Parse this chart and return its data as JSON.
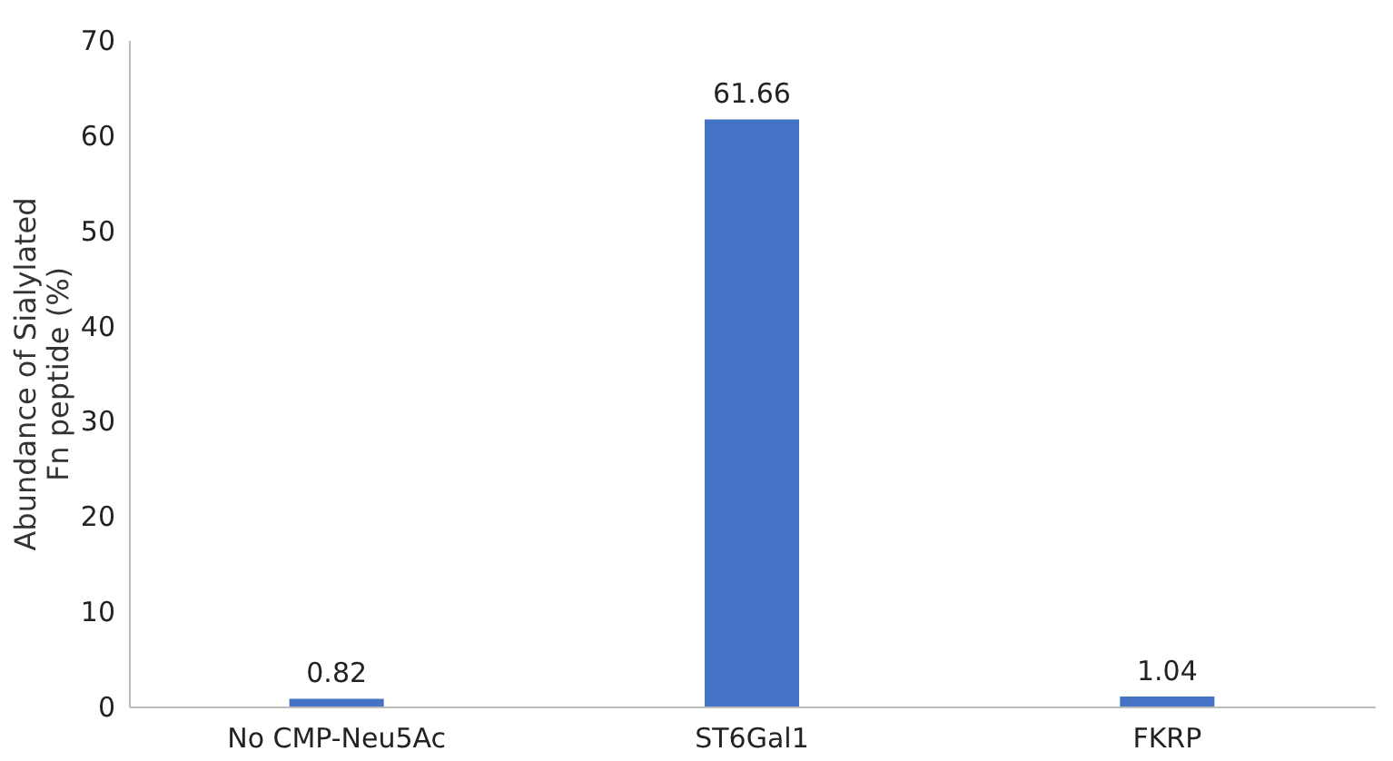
{
  "chart_data": {
    "type": "bar",
    "ylabel": "Abundance of Sialylated Fn peptide (%)",
    "categories": [
      "No CMP-Neu5Ac",
      "ST6Gal1",
      "FKRP"
    ],
    "values": [
      0.82,
      61.66,
      1.04
    ],
    "color": "#4472c4",
    "ylim": [
      0,
      70
    ],
    "yticks": [
      0,
      10,
      20,
      30,
      40,
      50,
      60,
      70
    ],
    "data_labels": true,
    "grid": false
  }
}
